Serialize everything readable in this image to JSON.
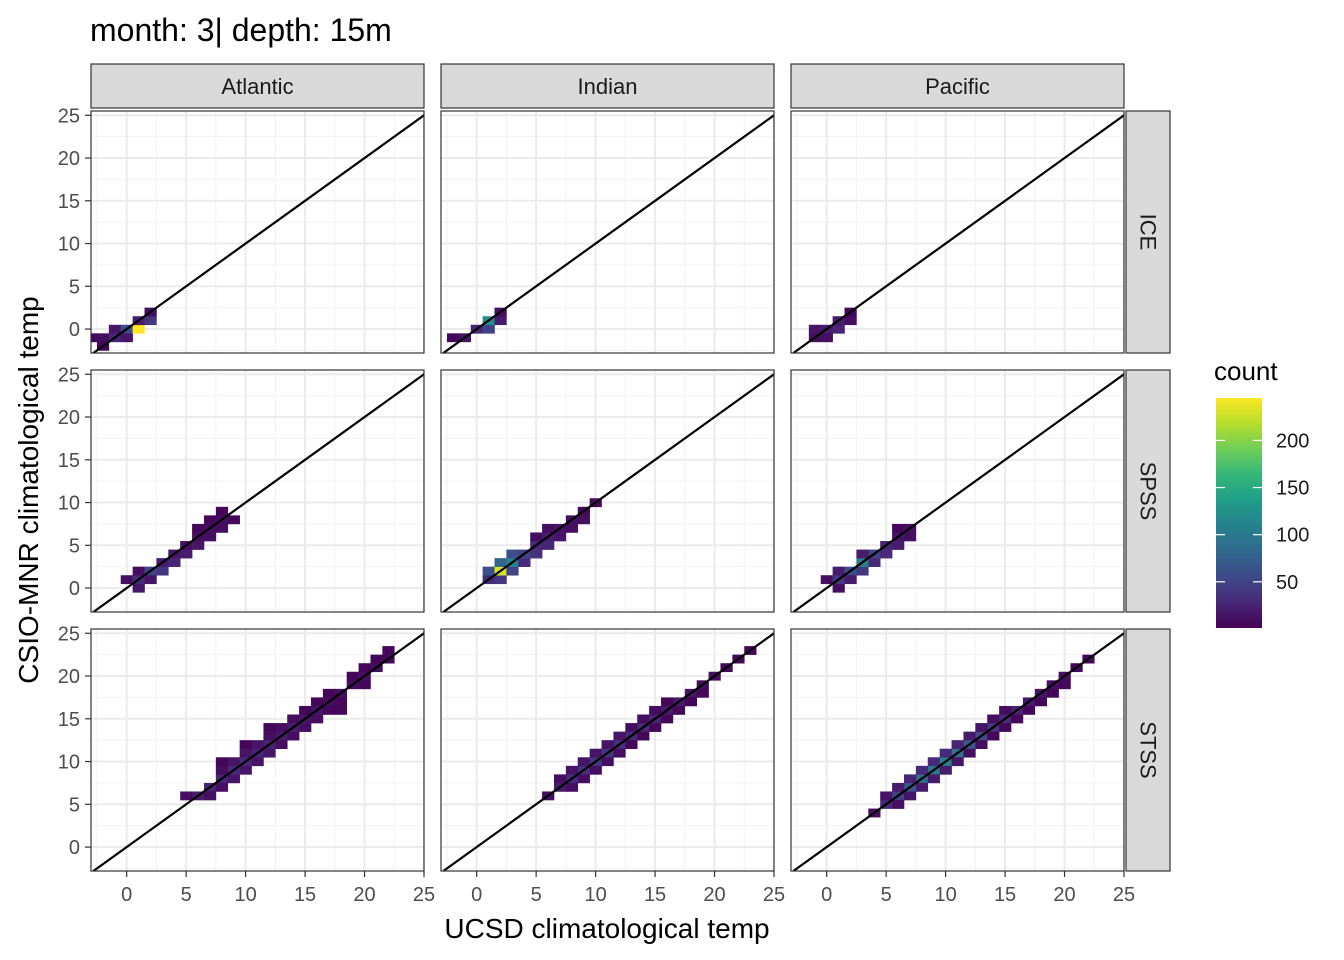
{
  "chart_data": {
    "type": "heatmap",
    "title": "month: 3| depth: 15m",
    "xlabel": "UCSD climatological temp",
    "ylabel": "CSIO-MNR climatological temp",
    "xlim": [
      -3,
      25
    ],
    "ylim": [
      -2.8,
      25.5
    ],
    "x_ticks": [
      0,
      5,
      10,
      15,
      20,
      25
    ],
    "y_ticks": [
      0,
      5,
      10,
      15,
      20,
      25
    ],
    "bin_width": 1,
    "reference_line": "y = x",
    "grid": true,
    "columns": [
      "Atlantic",
      "Indian",
      "Pacific"
    ],
    "rows": [
      "ICE",
      "SPSS",
      "STSS"
    ],
    "legend": {
      "title": "count",
      "position": "right",
      "breaks": [
        50,
        100,
        150,
        200
      ],
      "min": 1,
      "max": 245,
      "colors": [
        "#440154",
        "#482878",
        "#3e4a89",
        "#31688e",
        "#26828e",
        "#1f9e89",
        "#35b779",
        "#6ece58",
        "#b5de2b",
        "#fde725"
      ]
    },
    "panels": [
      {
        "column": "Atlantic",
        "row": "ICE",
        "bins": [
          [
            -3,
            -1,
            5
          ],
          [
            -2,
            -1,
            10
          ],
          [
            -1,
            -1,
            25
          ],
          [
            -1,
            0,
            15
          ],
          [
            0,
            0,
            60
          ],
          [
            0,
            -1,
            15
          ],
          [
            1,
            0,
            245
          ],
          [
            1,
            1,
            20
          ],
          [
            2,
            1,
            40
          ],
          [
            2,
            2,
            10
          ],
          [
            -2,
            -2,
            3
          ]
        ]
      },
      {
        "column": "Indian",
        "row": "ICE",
        "bins": [
          [
            -2,
            -1,
            5
          ],
          [
            -1,
            -1,
            15
          ],
          [
            0,
            0,
            25
          ],
          [
            1,
            0,
            50
          ],
          [
            1,
            1,
            120
          ],
          [
            2,
            1,
            20
          ],
          [
            2,
            2,
            10
          ]
        ]
      },
      {
        "column": "Pacific",
        "row": "ICE",
        "bins": [
          [
            -1,
            -1,
            10
          ],
          [
            -1,
            0,
            15
          ],
          [
            0,
            0,
            20
          ],
          [
            0,
            -1,
            10
          ],
          [
            1,
            0,
            25
          ],
          [
            1,
            1,
            20
          ],
          [
            2,
            1,
            10
          ],
          [
            2,
            2,
            5
          ]
        ]
      },
      {
        "column": "Atlantic",
        "row": "SPSS",
        "bins": [
          [
            0,
            1,
            10
          ],
          [
            1,
            0,
            15
          ],
          [
            1,
            1,
            30
          ],
          [
            1,
            2,
            10
          ],
          [
            2,
            2,
            50
          ],
          [
            2,
            1,
            15
          ],
          [
            3,
            2,
            40
          ],
          [
            3,
            3,
            20
          ],
          [
            4,
            3,
            25
          ],
          [
            4,
            4,
            15
          ],
          [
            5,
            4,
            20
          ],
          [
            5,
            5,
            10
          ],
          [
            6,
            5,
            15
          ],
          [
            6,
            6,
            10
          ],
          [
            7,
            6,
            10
          ],
          [
            7,
            7,
            10
          ],
          [
            8,
            7,
            10
          ],
          [
            8,
            8,
            10
          ],
          [
            9,
            8,
            5
          ],
          [
            7,
            8,
            5
          ],
          [
            6,
            7,
            5
          ],
          [
            8,
            9,
            5
          ]
        ]
      },
      {
        "column": "Indian",
        "row": "SPSS",
        "bins": [
          [
            1,
            1,
            30
          ],
          [
            1,
            2,
            60
          ],
          [
            2,
            1,
            40
          ],
          [
            2,
            2,
            230
          ],
          [
            2,
            3,
            80
          ],
          [
            3,
            2,
            50
          ],
          [
            3,
            3,
            110
          ],
          [
            3,
            4,
            60
          ],
          [
            4,
            3,
            30
          ],
          [
            4,
            4,
            50
          ],
          [
            5,
            4,
            35
          ],
          [
            5,
            5,
            30
          ],
          [
            6,
            5,
            25
          ],
          [
            6,
            6,
            20
          ],
          [
            7,
            6,
            15
          ],
          [
            7,
            7,
            15
          ],
          [
            8,
            7,
            10
          ],
          [
            8,
            8,
            10
          ],
          [
            9,
            8,
            10
          ],
          [
            9,
            9,
            5
          ],
          [
            10,
            10,
            5
          ],
          [
            5,
            6,
            10
          ],
          [
            6,
            7,
            10
          ]
        ]
      },
      {
        "column": "Pacific",
        "row": "SPSS",
        "bins": [
          [
            0,
            1,
            10
          ],
          [
            1,
            0,
            10
          ],
          [
            1,
            1,
            40
          ],
          [
            1,
            2,
            20
          ],
          [
            2,
            2,
            60
          ],
          [
            2,
            1,
            20
          ],
          [
            3,
            2,
            40
          ],
          [
            3,
            3,
            110
          ],
          [
            4,
            3,
            30
          ],
          [
            4,
            4,
            50
          ],
          [
            5,
            4,
            30
          ],
          [
            5,
            5,
            25
          ],
          [
            6,
            5,
            20
          ],
          [
            6,
            6,
            15
          ],
          [
            7,
            6,
            10
          ],
          [
            7,
            7,
            10
          ],
          [
            3,
            4,
            20
          ],
          [
            6,
            7,
            5
          ]
        ]
      },
      {
        "column": "Atlantic",
        "row": "STSS",
        "bins": [
          [
            5,
            6,
            10
          ],
          [
            6,
            6,
            20
          ],
          [
            7,
            7,
            25
          ],
          [
            8,
            8,
            25
          ],
          [
            9,
            9,
            30
          ],
          [
            10,
            10,
            30
          ],
          [
            11,
            11,
            25
          ],
          [
            12,
            12,
            25
          ],
          [
            13,
            13,
            20
          ],
          [
            14,
            14,
            20
          ],
          [
            15,
            15,
            15
          ],
          [
            16,
            16,
            15
          ],
          [
            17,
            17,
            10
          ],
          [
            18,
            18,
            10
          ],
          [
            19,
            19,
            10
          ],
          [
            20,
            20,
            10
          ],
          [
            21,
            21,
            10
          ],
          [
            22,
            22,
            5
          ],
          [
            7,
            6,
            10
          ],
          [
            8,
            7,
            10
          ],
          [
            9,
            8,
            15
          ],
          [
            10,
            9,
            15
          ],
          [
            11,
            10,
            15
          ],
          [
            12,
            11,
            15
          ],
          [
            13,
            12,
            10
          ],
          [
            14,
            13,
            10
          ],
          [
            15,
            14,
            10
          ],
          [
            16,
            15,
            10
          ],
          [
            17,
            16,
            5
          ],
          [
            18,
            17,
            5
          ],
          [
            8,
            9,
            10
          ],
          [
            9,
            10,
            15
          ],
          [
            10,
            11,
            15
          ],
          [
            11,
            12,
            15
          ],
          [
            12,
            13,
            10
          ],
          [
            13,
            14,
            10
          ],
          [
            14,
            15,
            10
          ],
          [
            15,
            16,
            5
          ],
          [
            16,
            17,
            5
          ],
          [
            17,
            18,
            5
          ],
          [
            8,
            10,
            5
          ],
          [
            10,
            12,
            5
          ],
          [
            12,
            14,
            5
          ],
          [
            19,
            20,
            5
          ],
          [
            20,
            21,
            5
          ],
          [
            21,
            22,
            5
          ],
          [
            22,
            23,
            5
          ],
          [
            18,
            16,
            5
          ],
          [
            20,
            19,
            5
          ]
        ]
      },
      {
        "column": "Indian",
        "row": "STSS",
        "bins": [
          [
            6,
            6,
            10
          ],
          [
            7,
            7,
            20
          ],
          [
            8,
            8,
            30
          ],
          [
            9,
            9,
            35
          ],
          [
            10,
            10,
            40
          ],
          [
            11,
            11,
            40
          ],
          [
            12,
            12,
            35
          ],
          [
            13,
            13,
            30
          ],
          [
            14,
            14,
            30
          ],
          [
            15,
            15,
            25
          ],
          [
            16,
            16,
            20
          ],
          [
            17,
            17,
            20
          ],
          [
            18,
            18,
            15
          ],
          [
            19,
            19,
            10
          ],
          [
            20,
            20,
            10
          ],
          [
            21,
            21,
            5
          ],
          [
            22,
            22,
            5
          ],
          [
            23,
            23,
            5
          ],
          [
            7,
            8,
            10
          ],
          [
            8,
            9,
            15
          ],
          [
            9,
            10,
            15
          ],
          [
            10,
            11,
            15
          ],
          [
            11,
            12,
            15
          ],
          [
            12,
            13,
            15
          ],
          [
            13,
            14,
            10
          ],
          [
            14,
            15,
            10
          ],
          [
            15,
            16,
            10
          ],
          [
            16,
            17,
            5
          ],
          [
            8,
            7,
            10
          ],
          [
            9,
            8,
            10
          ],
          [
            10,
            9,
            10
          ],
          [
            11,
            10,
            10
          ],
          [
            12,
            11,
            10
          ],
          [
            13,
            12,
            5
          ],
          [
            14,
            13,
            5
          ],
          [
            15,
            14,
            5
          ],
          [
            16,
            15,
            5
          ],
          [
            17,
            16,
            5
          ],
          [
            18,
            17,
            5
          ],
          [
            19,
            18,
            5
          ]
        ]
      },
      {
        "column": "Pacific",
        "row": "STSS",
        "bins": [
          [
            4,
            4,
            10
          ],
          [
            5,
            5,
            30
          ],
          [
            6,
            6,
            50
          ],
          [
            7,
            7,
            70
          ],
          [
            8,
            8,
            90
          ],
          [
            9,
            9,
            100
          ],
          [
            10,
            10,
            110
          ],
          [
            11,
            11,
            95
          ],
          [
            12,
            12,
            70
          ],
          [
            13,
            13,
            55
          ],
          [
            14,
            14,
            40
          ],
          [
            15,
            15,
            30
          ],
          [
            16,
            16,
            25
          ],
          [
            17,
            17,
            20
          ],
          [
            18,
            18,
            15
          ],
          [
            19,
            19,
            10
          ],
          [
            20,
            20,
            10
          ],
          [
            21,
            21,
            5
          ],
          [
            22,
            22,
            5
          ],
          [
            5,
            6,
            15
          ],
          [
            6,
            7,
            20
          ],
          [
            7,
            8,
            25
          ],
          [
            8,
            9,
            30
          ],
          [
            9,
            10,
            30
          ],
          [
            10,
            11,
            30
          ],
          [
            11,
            12,
            25
          ],
          [
            12,
            13,
            20
          ],
          [
            13,
            14,
            15
          ],
          [
            14,
            15,
            10
          ],
          [
            15,
            16,
            10
          ],
          [
            6,
            5,
            10
          ],
          [
            7,
            6,
            15
          ],
          [
            8,
            7,
            20
          ],
          [
            9,
            8,
            20
          ],
          [
            10,
            9,
            20
          ],
          [
            11,
            10,
            15
          ],
          [
            12,
            11,
            10
          ],
          [
            13,
            12,
            10
          ],
          [
            14,
            13,
            5
          ],
          [
            15,
            14,
            5
          ],
          [
            16,
            15,
            5
          ],
          [
            17,
            16,
            5
          ],
          [
            18,
            17,
            5
          ],
          [
            19,
            18,
            5
          ],
          [
            20,
            19,
            5
          ]
        ]
      }
    ]
  }
}
